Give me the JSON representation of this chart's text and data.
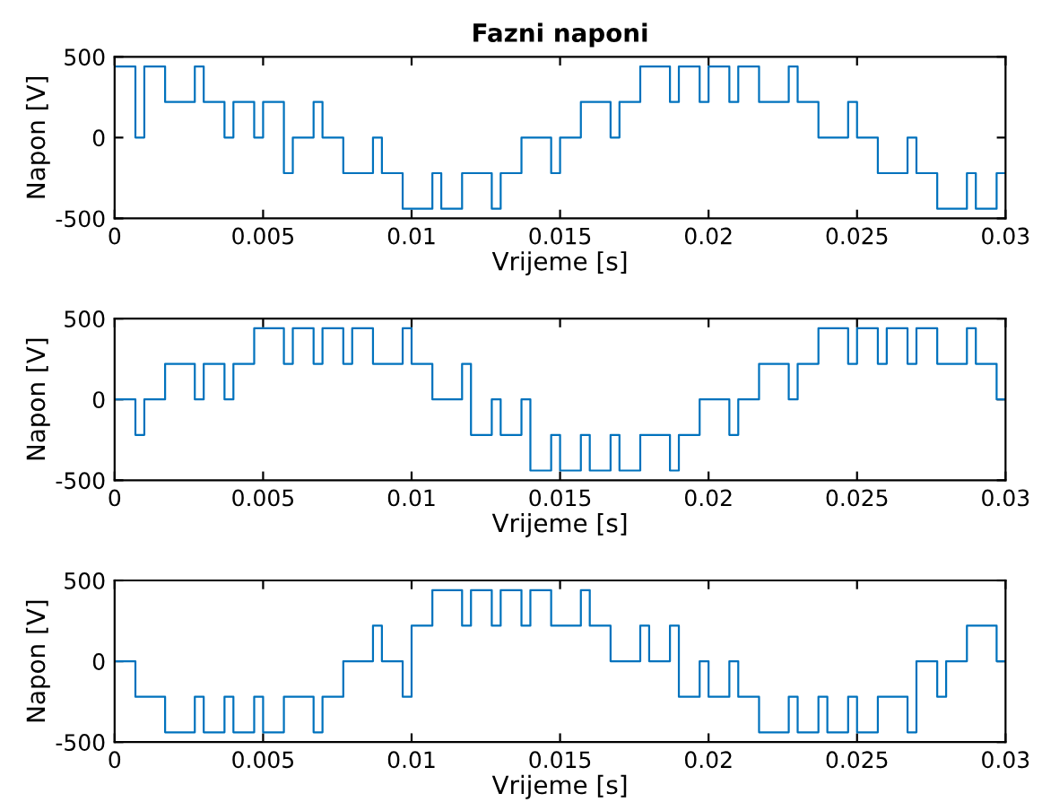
{
  "chart_data": [
    {
      "type": "step",
      "title": "Fazni naponi",
      "xlabel": "Vrijeme [s]",
      "ylabel": "Napon [V]",
      "xlim": [
        0,
        0.03
      ],
      "xticks": [
        0,
        0.005,
        0.01,
        0.015,
        0.02,
        0.025,
        0.03
      ],
      "ylim": [
        -500,
        500
      ],
      "yticks": [
        -500,
        0,
        500
      ],
      "grid": false,
      "legend": false,
      "series": [
        {
          "color": "#0072bd",
          "x": [
            0,
            0.0007,
            0.001,
            0.0017,
            0.002,
            0.0027,
            0.003,
            0.0037,
            0.004,
            0.0047,
            0.005,
            0.0057,
            0.006,
            0.0067,
            0.007,
            0.0077,
            0.008,
            0.0087,
            0.009,
            0.0097,
            0.01,
            0.0107,
            0.011,
            0.0117,
            0.012,
            0.0127,
            0.013,
            0.0137,
            0.014,
            0.0147,
            0.015,
            0.0157,
            0.016,
            0.0167,
            0.017,
            0.0177,
            0.018,
            0.0187,
            0.019,
            0.0197,
            0.02,
            0.0207,
            0.021,
            0.0217,
            0.022,
            0.0227,
            0.023,
            0.0237,
            0.024,
            0.0247,
            0.025,
            0.0257,
            0.026,
            0.0267,
            0.027,
            0.0277,
            0.028,
            0.0287,
            0.029,
            0.0297,
            0.03
          ],
          "values": [
            440,
            0,
            440,
            220,
            220,
            440,
            220,
            0,
            220,
            0,
            220,
            -220,
            0,
            220,
            0,
            -220,
            -220,
            0,
            -220,
            -440,
            -440,
            -220,
            -440,
            -220,
            -220,
            -440,
            -220,
            0,
            0,
            -220,
            0,
            220,
            220,
            0,
            220,
            440,
            440,
            220,
            440,
            220,
            440,
            220,
            440,
            220,
            220,
            440,
            220,
            0,
            0,
            220,
            0,
            -220,
            -220,
            0,
            -220,
            -440,
            -440,
            -220,
            -440,
            -220,
            -220
          ]
        }
      ]
    },
    {
      "type": "step",
      "xlabel": "Vrijeme [s]",
      "ylabel": "Napon [V]",
      "xlim": [
        0,
        0.03
      ],
      "xticks": [
        0,
        0.005,
        0.01,
        0.015,
        0.02,
        0.025,
        0.03
      ],
      "ylim": [
        -500,
        500
      ],
      "yticks": [
        -500,
        0,
        500
      ],
      "grid": false,
      "legend": false,
      "series": [
        {
          "color": "#0072bd",
          "x": [
            0,
            0.0007,
            0.001,
            0.0017,
            0.002,
            0.0027,
            0.003,
            0.0037,
            0.004,
            0.0047,
            0.005,
            0.0057,
            0.006,
            0.0067,
            0.007,
            0.0077,
            0.008,
            0.0087,
            0.009,
            0.0097,
            0.01,
            0.0107,
            0.011,
            0.0117,
            0.012,
            0.0127,
            0.013,
            0.0137,
            0.014,
            0.0147,
            0.015,
            0.0157,
            0.016,
            0.0167,
            0.017,
            0.0177,
            0.018,
            0.0187,
            0.019,
            0.0197,
            0.02,
            0.0207,
            0.021,
            0.0217,
            0.022,
            0.0227,
            0.023,
            0.0237,
            0.024,
            0.0247,
            0.025,
            0.0257,
            0.026,
            0.0267,
            0.027,
            0.0277,
            0.028,
            0.0287,
            0.029,
            0.0297,
            0.03
          ],
          "values": [
            0,
            -220,
            0,
            220,
            220,
            0,
            220,
            0,
            220,
            440,
            440,
            220,
            440,
            220,
            440,
            220,
            440,
            220,
            220,
            440,
            220,
            0,
            0,
            220,
            -220,
            0,
            -220,
            0,
            -440,
            -220,
            -440,
            -220,
            -440,
            -220,
            -440,
            -220,
            -220,
            -440,
            -220,
            0,
            0,
            -220,
            0,
            220,
            220,
            0,
            220,
            440,
            440,
            220,
            440,
            220,
            440,
            220,
            440,
            220,
            220,
            440,
            220,
            0,
            0
          ]
        }
      ]
    },
    {
      "type": "step",
      "xlabel": "Vrijeme [s]",
      "ylabel": "Napon [V]",
      "xlim": [
        0,
        0.03
      ],
      "xticks": [
        0,
        0.005,
        0.01,
        0.015,
        0.02,
        0.025,
        0.03
      ],
      "ylim": [
        -500,
        500
      ],
      "yticks": [
        -500,
        0,
        500
      ],
      "grid": false,
      "legend": false,
      "series": [
        {
          "color": "#0072bd",
          "x": [
            0,
            0.0007,
            0.001,
            0.0017,
            0.002,
            0.0027,
            0.003,
            0.0037,
            0.004,
            0.0047,
            0.005,
            0.0057,
            0.006,
            0.0067,
            0.007,
            0.0077,
            0.008,
            0.0087,
            0.009,
            0.0097,
            0.01,
            0.0107,
            0.011,
            0.0117,
            0.012,
            0.0127,
            0.013,
            0.0137,
            0.014,
            0.0147,
            0.015,
            0.0157,
            0.016,
            0.0167,
            0.017,
            0.0177,
            0.018,
            0.0187,
            0.019,
            0.0197,
            0.02,
            0.0207,
            0.021,
            0.0217,
            0.022,
            0.0227,
            0.023,
            0.0237,
            0.024,
            0.0247,
            0.025,
            0.0257,
            0.026,
            0.0267,
            0.027,
            0.0277,
            0.028,
            0.0287,
            0.029,
            0.0297,
            0.03
          ],
          "values": [
            0,
            -220,
            -220,
            -440,
            -440,
            -220,
            -440,
            -220,
            -440,
            -220,
            -440,
            -220,
            -220,
            -440,
            -220,
            0,
            0,
            220,
            0,
            -220,
            220,
            440,
            440,
            220,
            440,
            220,
            440,
            220,
            440,
            220,
            220,
            440,
            220,
            0,
            0,
            220,
            0,
            220,
            -220,
            0,
            -220,
            0,
            -220,
            -440,
            -440,
            -220,
            -440,
            -220,
            -440,
            -220,
            -440,
            -220,
            -220,
            -440,
            0,
            -220,
            0,
            220,
            220,
            0,
            0
          ]
        }
      ]
    }
  ]
}
